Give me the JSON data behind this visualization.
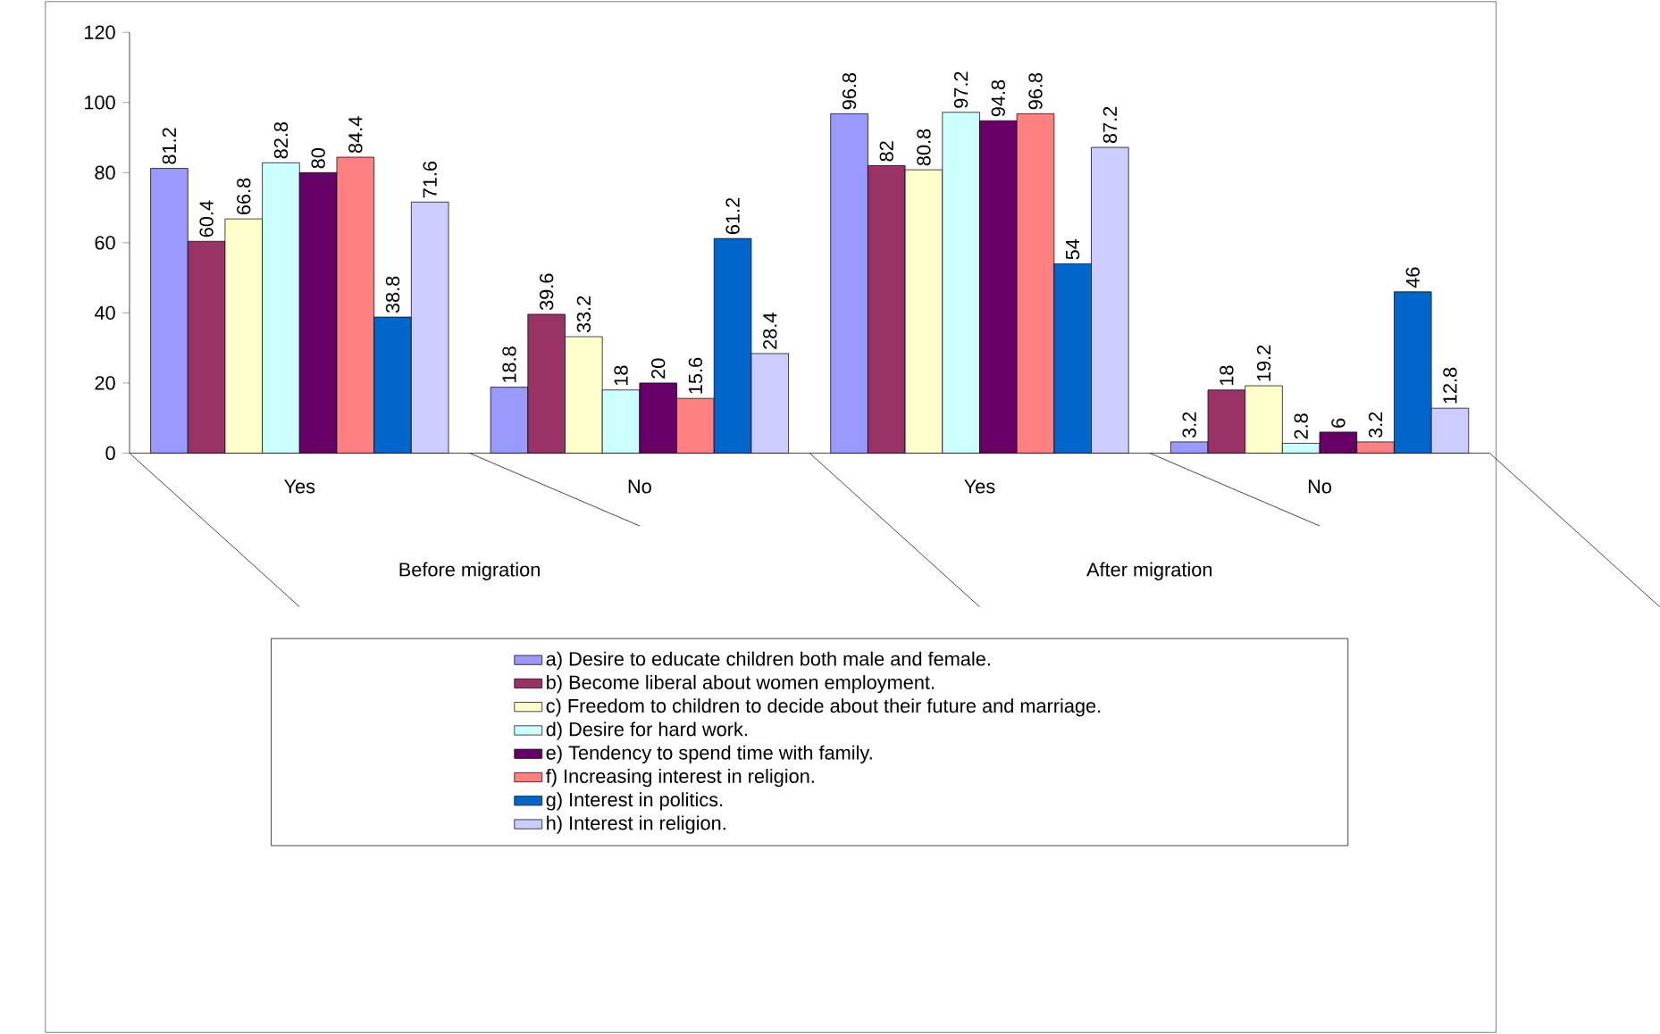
{
  "chart_data": {
    "type": "bar",
    "categories": [
      "Yes",
      "No",
      "Yes",
      "No"
    ],
    "annotations": [
      "Before migration",
      "After migration"
    ],
    "series": [
      {
        "name": "a) Desire to educate children both male and female.",
        "color": "#9999ff",
        "values": [
          81.2,
          18.8,
          96.8,
          3.2
        ]
      },
      {
        "name": "b) Become liberal about women employment.",
        "color": "#993366",
        "values": [
          60.4,
          39.6,
          82,
          18
        ]
      },
      {
        "name": "c) Freedom to children to decide about their future and marriage.",
        "color": "#ffffcc",
        "values": [
          66.8,
          33.2,
          80.8,
          19.2
        ]
      },
      {
        "name": "d) Desire for hard work.",
        "color": "#ccffff",
        "values": [
          82.8,
          18,
          97.2,
          2.8
        ]
      },
      {
        "name": "e) Tendency to spend time with family.",
        "color": "#660066",
        "values": [
          80,
          20,
          94.8,
          6
        ]
      },
      {
        "name": "f) Increasing interest in religion.",
        "color": "#ff8080",
        "values": [
          84.4,
          15.6,
          96.8,
          3.2
        ]
      },
      {
        "name": "g) Interest in politics.",
        "color": "#0066cc",
        "values": [
          38.8,
          61.2,
          54,
          46
        ]
      },
      {
        "name": "h) Interest in religion.",
        "color": "#ccccff",
        "values": [
          71.6,
          28.4,
          87.2,
          12.8
        ]
      }
    ],
    "ylim": [
      0,
      120
    ],
    "yticks": [
      0,
      20,
      40,
      60,
      80,
      100,
      120
    ],
    "data_labels": true,
    "legend": "bottom"
  }
}
